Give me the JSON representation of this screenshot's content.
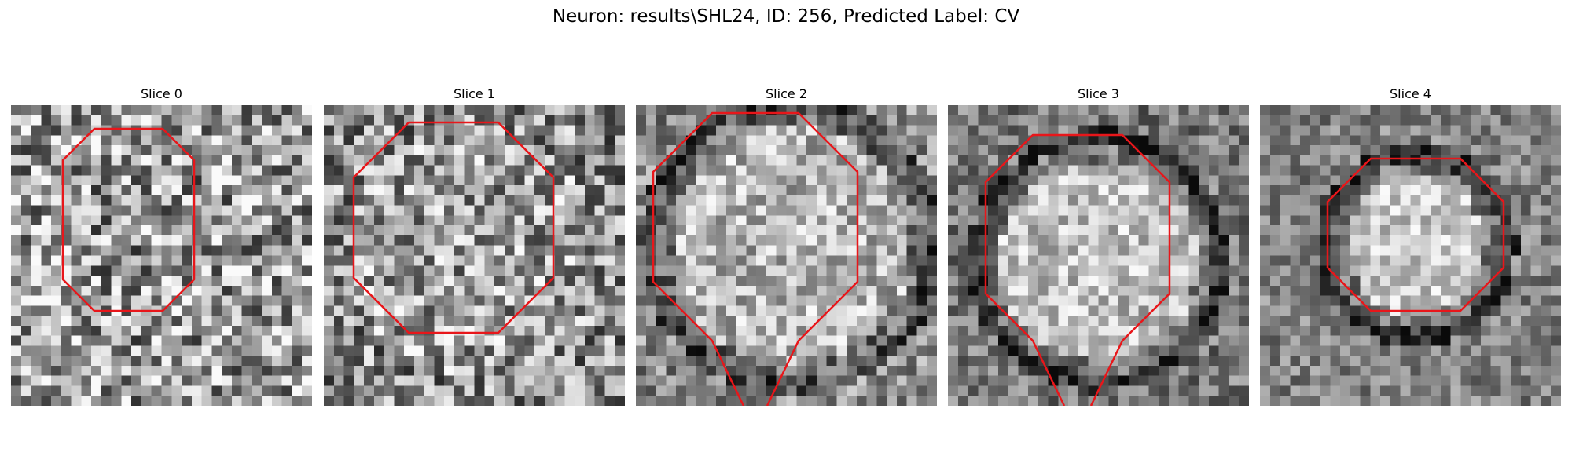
{
  "figure": {
    "title": "Neuron: results\\SHL24, ID: 256, Predicted Label: CV"
  },
  "colors": {
    "contour": "#e8161a",
    "background": "#ffffff",
    "colormap": "grayscale"
  },
  "slices": [
    {
      "title": "Slice 0"
    },
    {
      "title": "Slice 1"
    },
    {
      "title": "Slice 2"
    },
    {
      "title": "Slice 3"
    },
    {
      "title": "Slice 4"
    }
  ]
}
